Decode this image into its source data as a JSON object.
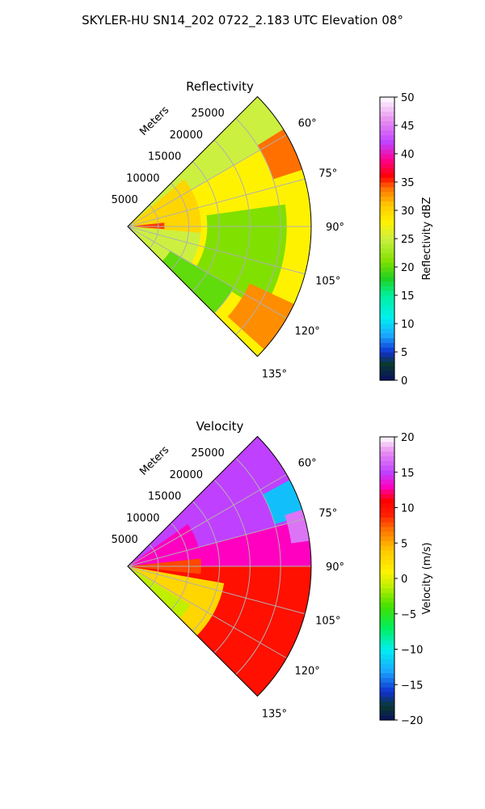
{
  "title": "SKYLER-HU  SN14_202  0722_2.183 UTC Elevation 08°",
  "chart_data": [
    {
      "type": "heatmap",
      "title": "Reflectivity",
      "range_axis_label": "Meters",
      "range_ticks": [
        "5000",
        "10000",
        "15000",
        "20000",
        "25000"
      ],
      "range_values": [
        5000,
        10000,
        15000,
        20000,
        25000
      ],
      "range_max": 30000,
      "azimuth_ticks": [
        "60°",
        "75°",
        "90°",
        "105°",
        "120°",
        "135°"
      ],
      "azimuth_values": [
        60,
        75,
        90,
        105,
        120,
        135
      ],
      "azimuth_range": [
        45,
        135
      ],
      "grid": true,
      "colorbar": {
        "label": "Reflectivity dBZ",
        "min": 0,
        "max": 50,
        "ticks": [
          "0",
          "5",
          "10",
          "15",
          "20",
          "25",
          "30",
          "35",
          "40",
          "45",
          "50"
        ],
        "tick_values": [
          0,
          5,
          10,
          15,
          20,
          25,
          30,
          35,
          40,
          45,
          50
        ],
        "stops": [
          {
            "value": 0,
            "color": "#0a1060"
          },
          {
            "value": 3,
            "color": "#0a3a30"
          },
          {
            "value": 5,
            "color": "#1030d0"
          },
          {
            "value": 8,
            "color": "#1aa8ff"
          },
          {
            "value": 11,
            "color": "#00f0f0"
          },
          {
            "value": 15,
            "color": "#00f0a0"
          },
          {
            "value": 18,
            "color": "#20d020"
          },
          {
            "value": 21,
            "color": "#80e000"
          },
          {
            "value": 25,
            "color": "#ccf040"
          },
          {
            "value": 28,
            "color": "#fff200"
          },
          {
            "value": 31,
            "color": "#ffc800"
          },
          {
            "value": 34,
            "color": "#ff7000"
          },
          {
            "value": 36,
            "color": "#ff0000"
          },
          {
            "value": 39,
            "color": "#ff0090"
          },
          {
            "value": 42,
            "color": "#c040ff"
          },
          {
            "value": 46,
            "color": "#e890f0"
          },
          {
            "value": 50,
            "color": "#ffffff"
          }
        ]
      },
      "regions": [
        {
          "az": [
            45,
            135
          ],
          "r": [
            0,
            30000
          ],
          "value": 25
        },
        {
          "az": [
            50,
            95
          ],
          "r": [
            1000,
            12000
          ],
          "value": 30
        },
        {
          "az": [
            60,
            135
          ],
          "r": [
            12000,
            30000
          ],
          "value": 28
        },
        {
          "az": [
            82,
            122
          ],
          "r": [
            13000,
            26000
          ],
          "value": 21
        },
        {
          "az": [
            120,
            135
          ],
          "r": [
            8000,
            20000
          ],
          "value": 20
        },
        {
          "az": [
            58,
            72
          ],
          "r": [
            25000,
            30000
          ],
          "value": 34
        },
        {
          "az": [
            115,
            132
          ],
          "r": [
            22000,
            30000
          ],
          "value": 33
        },
        {
          "az": [
            84,
            94
          ],
          "r": [
            1000,
            6000
          ],
          "value": 35
        }
      ]
    },
    {
      "type": "heatmap",
      "title": "Velocity",
      "range_axis_label": "Meters",
      "range_ticks": [
        "5000",
        "10000",
        "15000",
        "20000",
        "25000"
      ],
      "range_values": [
        5000,
        10000,
        15000,
        20000,
        25000
      ],
      "range_max": 30000,
      "azimuth_ticks": [
        "60°",
        "75°",
        "90°",
        "105°",
        "120°",
        "135°"
      ],
      "azimuth_values": [
        60,
        75,
        90,
        105,
        120,
        135
      ],
      "azimuth_range": [
        45,
        135
      ],
      "grid": true,
      "colorbar": {
        "label": "Velocity (m/s)",
        "min": -20,
        "max": 20,
        "ticks": [
          "−20",
          "−15",
          "−10",
          "−5",
          "0",
          "5",
          "10",
          "15",
          "20"
        ],
        "tick_values": [
          -20,
          -15,
          -10,
          -5,
          0,
          5,
          10,
          15,
          20
        ],
        "stops": [
          {
            "value": -20,
            "color": "#0a1060"
          },
          {
            "value": -18,
            "color": "#0a3a30"
          },
          {
            "value": -16,
            "color": "#1030d0"
          },
          {
            "value": -13,
            "color": "#1aa8ff"
          },
          {
            "value": -10,
            "color": "#00f0f0"
          },
          {
            "value": -7,
            "color": "#00f060"
          },
          {
            "value": -4,
            "color": "#40e000"
          },
          {
            "value": -1,
            "color": "#c0f000"
          },
          {
            "value": 1,
            "color": "#fff200"
          },
          {
            "value": 4,
            "color": "#ffc800"
          },
          {
            "value": 7,
            "color": "#ff7000"
          },
          {
            "value": 9,
            "color": "#ff2000"
          },
          {
            "value": 11,
            "color": "#ff0000"
          },
          {
            "value": 13,
            "color": "#ff00c0"
          },
          {
            "value": 15,
            "color": "#c040ff"
          },
          {
            "value": 18,
            "color": "#e890f0"
          },
          {
            "value": 20,
            "color": "#ffffff"
          }
        ]
      },
      "regions": [
        {
          "az": [
            45,
            90
          ],
          "r": [
            0,
            30000
          ],
          "value": 15
        },
        {
          "az": [
            75,
            90
          ],
          "r": [
            0,
            30000
          ],
          "value": 13
        },
        {
          "az": [
            55,
            75
          ],
          "r": [
            0,
            12000
          ],
          "value": 13
        },
        {
          "az": [
            90,
            135
          ],
          "r": [
            0,
            30000
          ],
          "value": 10
        },
        {
          "az": [
            100,
            135
          ],
          "r": [
            0,
            16000
          ],
          "value": 3
        },
        {
          "az": [
            122,
            135
          ],
          "r": [
            0,
            12000
          ],
          "value": -1
        },
        {
          "az": [
            84,
            96
          ],
          "r": [
            0,
            12000
          ],
          "value": 8
        },
        {
          "az": [
            62,
            74
          ],
          "r": [
            25000,
            30000
          ],
          "value": -12
        },
        {
          "az": [
            72,
            82
          ],
          "r": [
            27000,
            30000
          ],
          "value": 17
        }
      ]
    }
  ]
}
